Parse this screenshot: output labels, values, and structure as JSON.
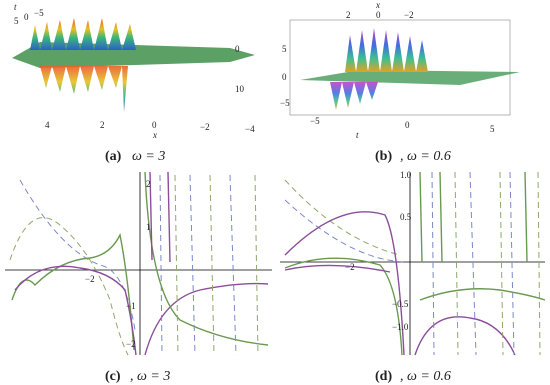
{
  "panels": [
    {
      "caption_label": "(a)",
      "caption_text": "ω = 3",
      "axis_t": "t",
      "t_ticks": [
        "5",
        "0",
        "−5"
      ],
      "axis_x": "x",
      "x_ticks": [
        "4",
        "2",
        "0",
        "−2",
        "−4"
      ],
      "z_ticks": [
        "0",
        "10"
      ]
    },
    {
      "caption_label": "(b)",
      "caption_text": ", ω = 0.6",
      "axis_x": "x",
      "x_ticks": [
        "2",
        "0",
        "−2"
      ],
      "y_ticks": [
        "5",
        "0",
        "−5"
      ],
      "axis_t": "t",
      "t_ticks": [
        "−5",
        "0",
        "5"
      ]
    },
    {
      "caption_label": "(c)",
      "caption_text": ", ω = 3",
      "y_ticks": [
        "2",
        "1",
        "−1",
        "−2"
      ],
      "x_ticks": [
        "−2"
      ]
    },
    {
      "caption_label": "(d)",
      "caption_text": ", ω = 0.6",
      "y_ticks": [
        "1.0",
        "0.5",
        "−0.5",
        "−1.0"
      ],
      "x_ticks": [
        "−2"
      ]
    }
  ]
}
